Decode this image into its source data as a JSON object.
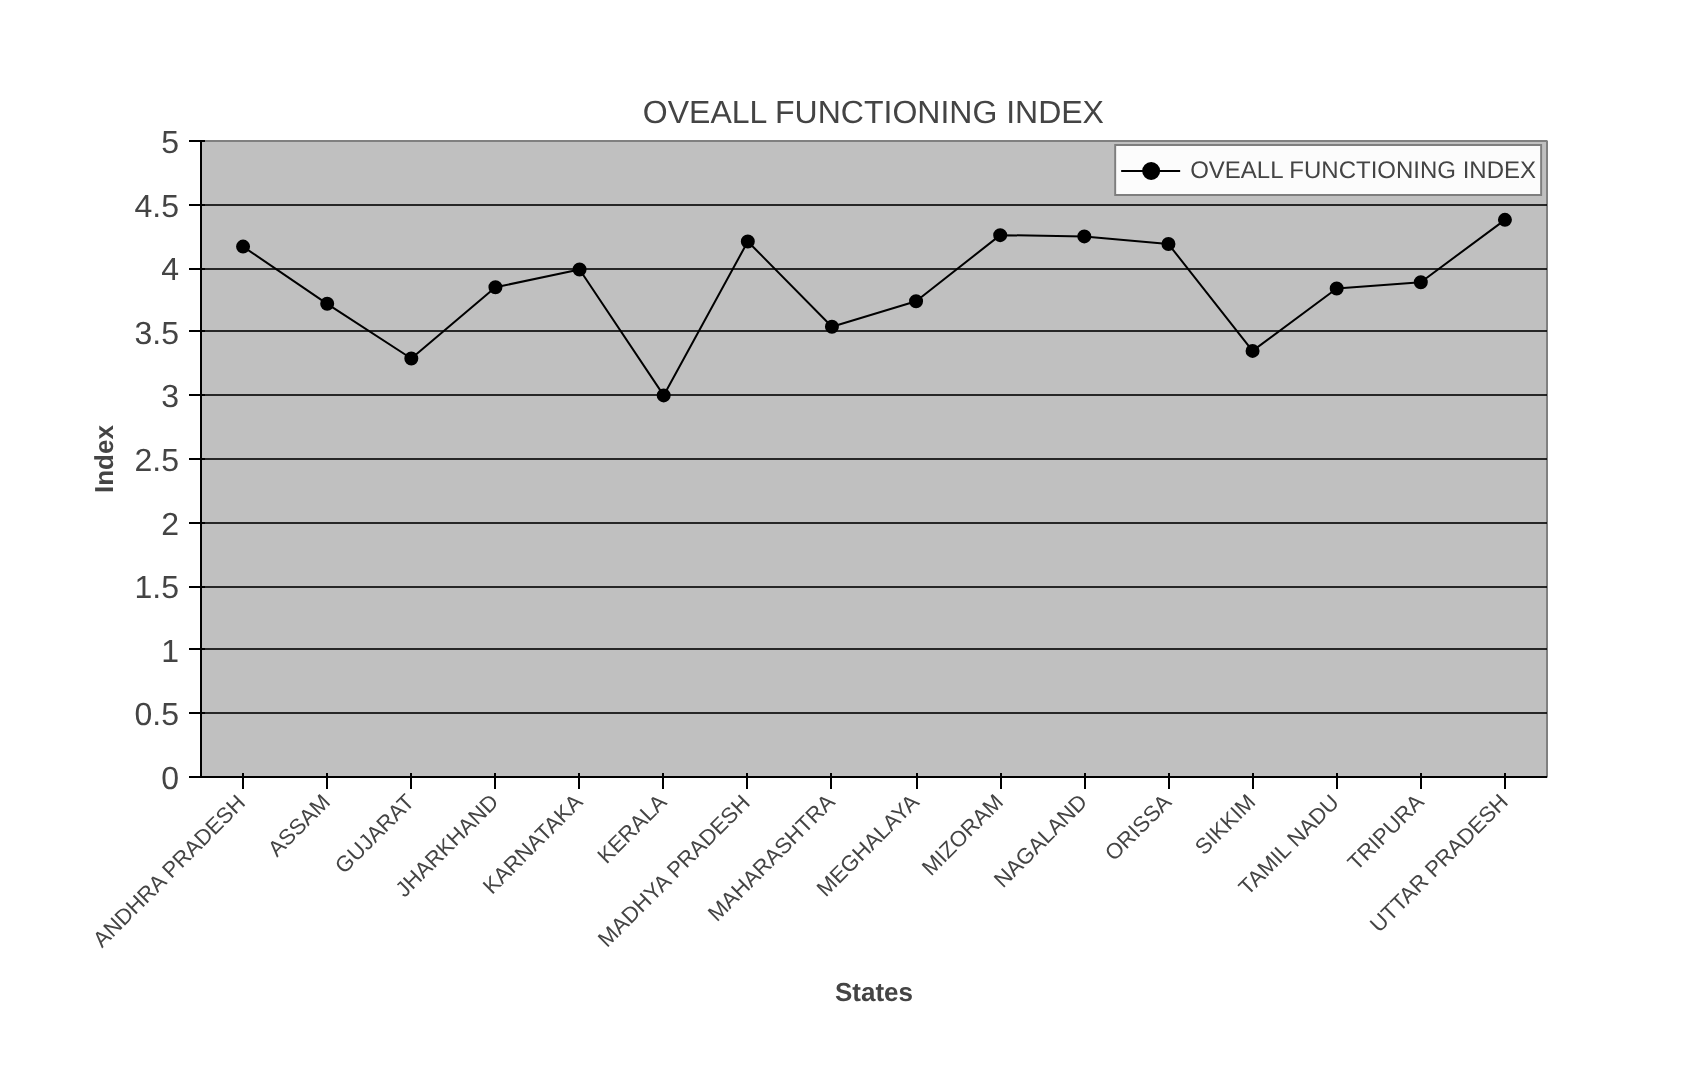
{
  "chart_data": {
    "type": "line",
    "title": "OVEALL FUNCTIONING INDEX",
    "xlabel": "States",
    "ylabel": "Index",
    "categories": [
      "ANDHRA PRADESH",
      "ASSAM",
      "GUJARAT",
      "JHARKHAND",
      "KARNATAKA",
      "KERALA",
      "MADHYA PRADESH",
      "MAHARASHTRA",
      "MEGHALAYA",
      "MIZORAM",
      "NAGALAND",
      "ORISSA",
      "SIKKIM",
      "TAMIL NADU",
      "TRIPURA",
      "UTTAR PRADESH"
    ],
    "series": [
      {
        "name": "OVEALL FUNCTIONING INDEX",
        "color": "#000000",
        "values": [
          4.17,
          3.72,
          3.29,
          3.85,
          3.99,
          3.0,
          4.21,
          3.54,
          3.74,
          4.26,
          4.25,
          4.19,
          3.35,
          3.84,
          3.89,
          4.38
        ]
      }
    ],
    "ylim": [
      0,
      5
    ],
    "yticks": [
      0,
      0.5,
      1,
      1.5,
      2,
      2.5,
      3,
      3.5,
      4,
      4.5,
      5
    ],
    "grid": "y",
    "legend": "top right",
    "marker": "circle",
    "line_style": "solid"
  }
}
